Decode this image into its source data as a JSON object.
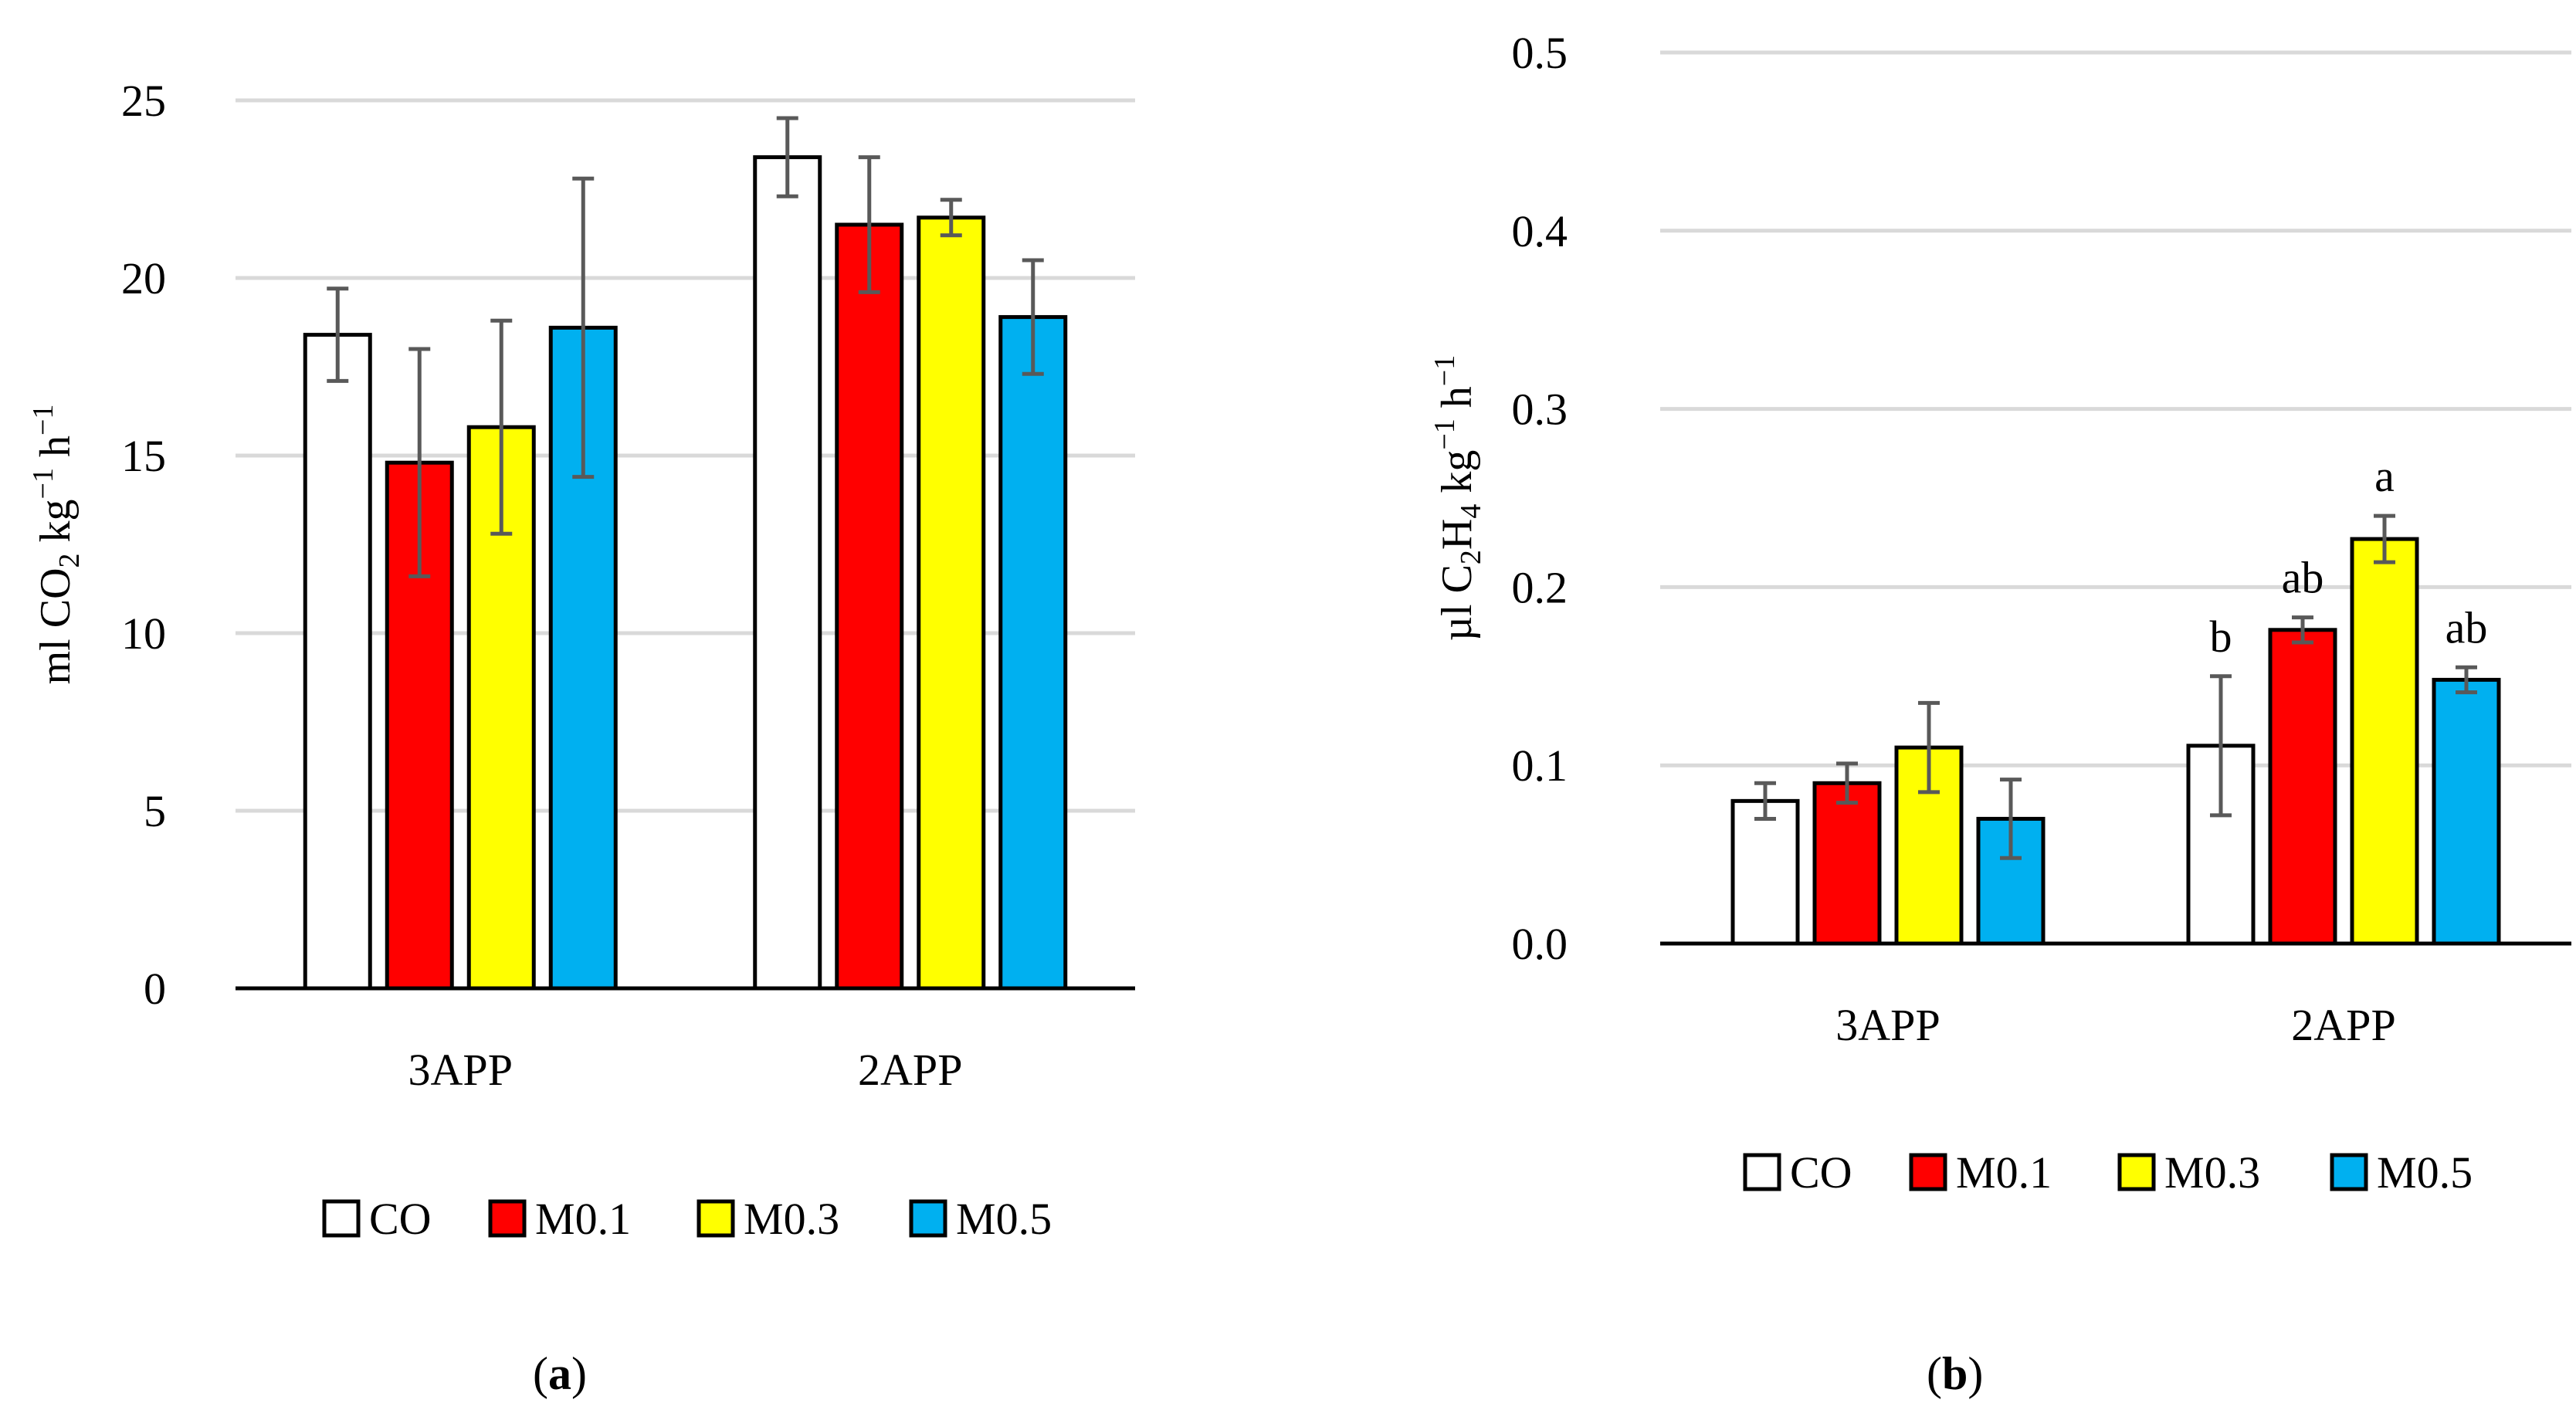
{
  "chart_data": [
    {
      "type": "bar",
      "panel_label": "a",
      "ylabel": {
        "prefix": "ml CO",
        "sub1": "2",
        "mid": " kg",
        "sup1": "−1",
        "mid2": " h",
        "sup2": "−1"
      },
      "categories": [
        "3APP",
        "2APP"
      ],
      "ylim": [
        0,
        25
      ],
      "yticks": [
        "0",
        "5",
        "10",
        "15",
        "20",
        "25"
      ],
      "grid": true,
      "legend_position": "bottom",
      "series": [
        {
          "name": "CO",
          "color": "#ffffff",
          "values": [
            18.4,
            23.4
          ],
          "errors": [
            1.3,
            1.1
          ]
        },
        {
          "name": "M0.1",
          "color": "#ff0000",
          "values": [
            14.8,
            21.5
          ],
          "errors": [
            3.2,
            1.9
          ]
        },
        {
          "name": "M0.3",
          "color": "#ffff00",
          "values": [
            15.8,
            21.7
          ],
          "errors": [
            3.0,
            0.5
          ]
        },
        {
          "name": "M0.5",
          "color": "#00b0f0",
          "values": [
            18.6,
            18.9
          ],
          "errors": [
            4.2,
            1.6
          ]
        }
      ],
      "significance": [
        [
          "",
          ""
        ],
        [
          "",
          ""
        ],
        [
          "",
          ""
        ],
        [
          "",
          ""
        ]
      ]
    },
    {
      "type": "bar",
      "panel_label": "b",
      "ylabel": {
        "prefix": "µl C",
        "sub1": "2",
        "mid": "H",
        "sub2": "4",
        "mid2": " kg",
        "sup1": "−1",
        "mid3": " h",
        "sup2": "−1"
      },
      "categories": [
        "3APP",
        "2APP"
      ],
      "ylim": [
        0,
        0.5
      ],
      "yticks": [
        "0.0",
        "0.1",
        "0.2",
        "0.3",
        "0.4",
        "0.5"
      ],
      "grid": true,
      "legend_position": "bottom",
      "series": [
        {
          "name": "CO",
          "color": "#ffffff",
          "values": [
            0.08,
            0.111
          ],
          "errors": [
            0.01,
            0.039
          ]
        },
        {
          "name": "M0.1",
          "color": "#ff0000",
          "values": [
            0.09,
            0.176
          ],
          "errors": [
            0.011,
            0.007
          ]
        },
        {
          "name": "M0.3",
          "color": "#ffff00",
          "values": [
            0.11,
            0.227
          ],
          "errors": [
            0.025,
            0.013
          ]
        },
        {
          "name": "M0.5",
          "color": "#00b0f0",
          "values": [
            0.07,
            0.148
          ],
          "errors": [
            0.022,
            0.007
          ]
        }
      ],
      "significance": [
        [
          "",
          "b"
        ],
        [
          "",
          "ab"
        ],
        [
          "",
          "a"
        ],
        [
          "",
          "ab"
        ]
      ]
    }
  ]
}
